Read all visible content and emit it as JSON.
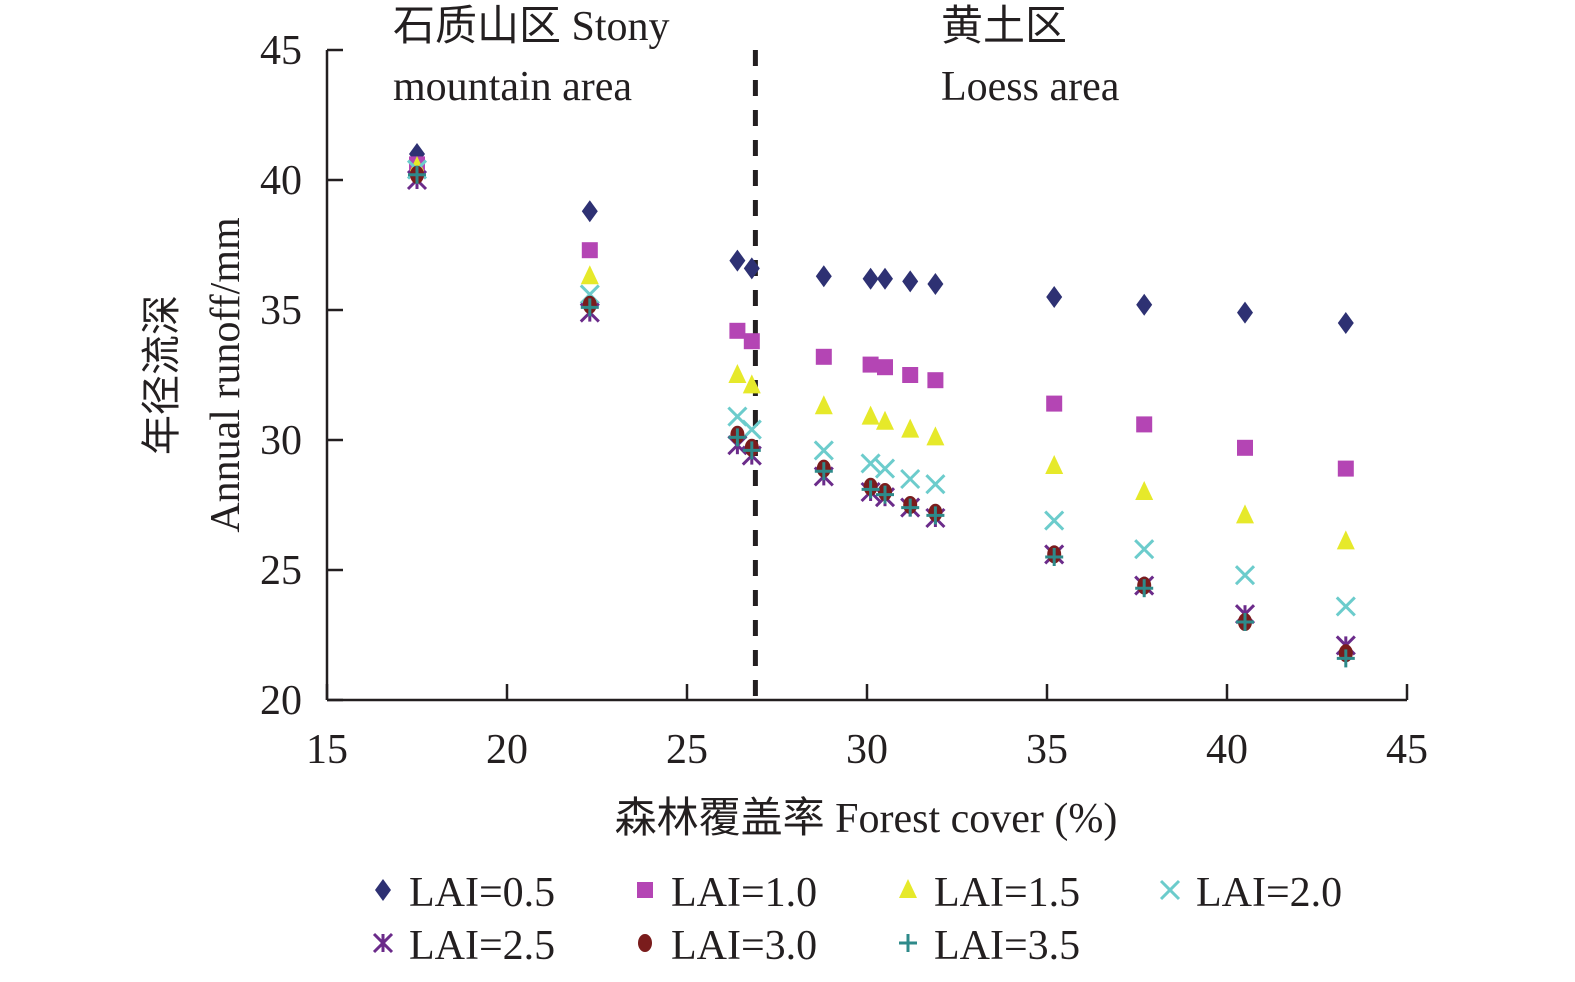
{
  "chart_data": {
    "type": "scatter",
    "title": "",
    "xlabel": "森林覆盖率 Forest cover (%)",
    "ylabel_line1": "年径流深",
    "ylabel_line2": "Annual runoff/mm",
    "xlim": [
      15,
      45
    ],
    "ylim": [
      20,
      45
    ],
    "xticks": [
      15,
      20,
      25,
      30,
      35,
      40,
      45
    ],
    "yticks": [
      20,
      25,
      30,
      35,
      40,
      45
    ],
    "grid": false,
    "legend_position": "bottom",
    "divider_x": 26.9,
    "regions": [
      {
        "line1": "石质山区 Stony",
        "line2": "mountain area"
      },
      {
        "line1": "黄土区",
        "line2": "Loess area"
      }
    ],
    "x": [
      17.5,
      22.3,
      26.4,
      26.8,
      28.8,
      30.1,
      30.5,
      31.2,
      31.9,
      35.2,
      37.7,
      40.5,
      43.3
    ],
    "series": [
      {
        "name": "LAI=0.5",
        "marker": "diamond",
        "color": "#2e3173",
        "values": [
          41.0,
          38.8,
          36.9,
          36.6,
          36.3,
          36.2,
          36.2,
          36.1,
          36.0,
          35.5,
          35.2,
          34.9,
          34.5
        ]
      },
      {
        "name": "LAI=1.0",
        "marker": "square",
        "color": "#b445b4",
        "values": [
          40.6,
          37.3,
          34.2,
          33.8,
          33.2,
          32.9,
          32.8,
          32.5,
          32.3,
          31.4,
          30.6,
          29.7,
          28.9
        ]
      },
      {
        "name": "LAI=1.5",
        "marker": "triangle",
        "color": "#e6e92a",
        "values": [
          40.5,
          36.3,
          32.5,
          32.1,
          31.3,
          30.9,
          30.7,
          30.4,
          30.1,
          29.0,
          28.0,
          27.1,
          26.1
        ]
      },
      {
        "name": "LAI=2.0",
        "marker": "x",
        "color": "#6ccccc",
        "values": [
          40.4,
          35.6,
          30.9,
          30.4,
          29.6,
          29.1,
          28.9,
          28.5,
          28.3,
          26.9,
          25.8,
          24.8,
          23.6
        ]
      },
      {
        "name": "LAI=2.5",
        "marker": "asterisk",
        "color": "#6b2b8a",
        "values": [
          40.0,
          34.9,
          29.8,
          29.4,
          28.6,
          28.0,
          27.8,
          27.4,
          27.0,
          25.6,
          24.4,
          23.3,
          22.1
        ]
      },
      {
        "name": "LAI=3.0",
        "marker": "circle",
        "color": "#7a1c1c",
        "values": [
          40.2,
          35.2,
          30.2,
          29.7,
          28.9,
          28.2,
          28.0,
          27.5,
          27.2,
          25.6,
          24.4,
          23.0,
          21.8
        ]
      },
      {
        "name": "LAI=3.5",
        "marker": "plus",
        "color": "#2e8a8a",
        "values": [
          40.2,
          35.1,
          30.1,
          29.6,
          28.8,
          28.1,
          27.9,
          27.4,
          27.1,
          25.5,
          24.3,
          23.0,
          21.6
        ]
      }
    ]
  }
}
